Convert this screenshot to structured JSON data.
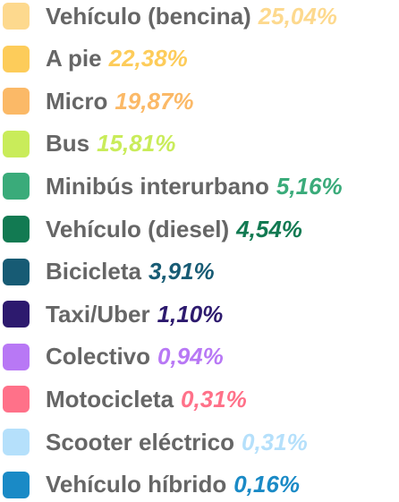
{
  "items": [
    {
      "label": "Vehículo (bencina)",
      "value": "25,04%",
      "color": "#fdd98e"
    },
    {
      "label": "A pie",
      "value": "22,38%",
      "color": "#fdcc5a"
    },
    {
      "label": "Micro",
      "value": "19,87%",
      "color": "#fbb967"
    },
    {
      "label": "Bus",
      "value": "15,81%",
      "color": "#c9ec5a"
    },
    {
      "label": "Minibús interurbano",
      "value": "5,16%",
      "color": "#3aab7a"
    },
    {
      "label": "Vehículo (diesel)",
      "value": "4,54%",
      "color": "#127a52"
    },
    {
      "label": "Bicicleta",
      "value": "3,91%",
      "color": "#175b74"
    },
    {
      "label": "Taxi/Uber",
      "value": "1,10%",
      "color": "#2d1a6e"
    },
    {
      "label": "Colectivo",
      "value": "0,94%",
      "color": "#b878f5"
    },
    {
      "label": "Motocicleta",
      "value": "0,31%",
      "color": "#ff7189"
    },
    {
      "label": "Scooter eléctrico",
      "value": "0,31%",
      "color": "#b5e0fb"
    },
    {
      "label": "Vehículo híbrido",
      "value": "0,16%",
      "color": "#1a8ac6"
    }
  ]
}
